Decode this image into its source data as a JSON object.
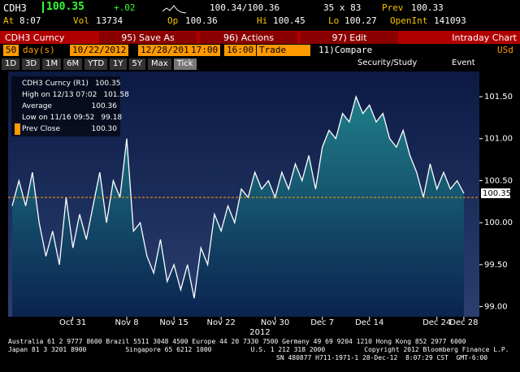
{
  "header": {
    "ticker": "CDH3",
    "last": "100.35",
    "change": "+.02",
    "bid_ask": "100.34/100.36",
    "size": "35 x 83",
    "prev_label": "Prev",
    "prev": "100.33",
    "at_label": "At",
    "time": "8:07",
    "vol_label": "Vol",
    "vol": "13734",
    "op_label": "Op",
    "open": "100.36",
    "hi_label": "Hi",
    "high": "100.45",
    "lo_label": "Lo",
    "low": "100.27",
    "oi_label": "OpenInt",
    "oi": "141093"
  },
  "toolbar": {
    "security": "CDH3 Curncy",
    "buttons": [
      "95) Save As",
      "96) Actions",
      "97) Edit"
    ],
    "view": "Intraday Chart"
  },
  "controls": {
    "period": "50",
    "unit": "day(s)",
    "start": "10/22/2012",
    "end": "12/28/2012",
    "t1": "17:00",
    "t2": "16:00",
    "field": "Trade",
    "compare": "11)Compare",
    "currency": "USd",
    "ranges": [
      "1D",
      "3D",
      "1M",
      "6M",
      "YTD",
      "1Y",
      "5Y",
      "Max",
      "Tick"
    ],
    "security_study": "Security/Study",
    "event": "Event"
  },
  "legend": [
    {
      "label": "CDH3 Curncy (R1)",
      "value": "100.35"
    },
    {
      "label": "High on 12/13 07:02",
      "value": "101.58"
    },
    {
      "label": "Average",
      "value": "100.36"
    },
    {
      "label": "Low on 11/16 09:52",
      "value": "99.18"
    },
    {
      "label": "Prev Close",
      "value": "100.30"
    }
  ],
  "chart_data": {
    "type": "line",
    "year_label": "2012",
    "x": [
      0,
      1,
      2,
      3,
      4,
      5,
      6,
      7,
      8,
      9,
      10,
      11,
      12,
      13,
      14,
      15,
      16,
      17,
      18,
      19,
      20,
      21,
      22,
      23,
      24,
      25,
      26,
      27,
      28,
      29,
      30,
      31,
      32,
      33,
      34,
      35,
      36,
      37,
      38,
      39,
      40,
      41,
      42,
      43,
      44,
      45,
      46,
      47,
      48,
      49,
      50,
      51,
      52,
      53,
      54,
      55,
      56,
      57,
      58,
      59,
      60,
      61,
      62,
      63,
      64,
      65,
      66,
      67
    ],
    "series": [
      {
        "name": "CDH3 Curncy",
        "color": "#ffffff",
        "values": [
          100.2,
          100.5,
          100.2,
          100.6,
          100.0,
          99.6,
          99.9,
          99.5,
          100.3,
          99.7,
          100.1,
          99.8,
          100.2,
          100.6,
          100.0,
          100.5,
          100.3,
          101.0,
          99.9,
          100.0,
          99.6,
          99.4,
          99.8,
          99.3,
          99.5,
          99.2,
          99.5,
          99.1,
          99.7,
          99.5,
          100.1,
          99.9,
          100.2,
          100.0,
          100.4,
          100.3,
          100.6,
          100.4,
          100.5,
          100.3,
          100.6,
          100.4,
          100.7,
          100.5,
          100.8,
          100.4,
          100.9,
          101.1,
          101.0,
          101.3,
          101.2,
          101.5,
          101.3,
          101.4,
          101.2,
          101.3,
          101.0,
          100.9,
          101.1,
          100.8,
          100.6,
          100.3,
          100.7,
          100.4,
          100.6,
          100.4,
          100.5,
          100.35
        ]
      }
    ],
    "prev_close": 100.3,
    "last_tag": {
      "value": 100.35,
      "label": "100.35"
    },
    "xlim": [
      -0.6,
      69.3
    ],
    "xticks": [
      {
        "value": 9,
        "label": "Oct 31"
      },
      {
        "value": 17,
        "label": "Nov 8"
      },
      {
        "value": 24,
        "label": "Nov 15"
      },
      {
        "value": 31,
        "label": "Nov 22"
      },
      {
        "value": 39,
        "label": "Nov 30"
      },
      {
        "value": 46,
        "label": "Dec 7"
      },
      {
        "value": 53,
        "label": "Dec 14"
      },
      {
        "value": 63,
        "label": "Dec 24"
      },
      {
        "value": 67,
        "label": "Dec 28"
      }
    ],
    "ylim": [
      98.88,
      101.8
    ],
    "yticks": [
      {
        "value": 99,
        "label": "99.00"
      },
      {
        "value": 99.5,
        "label": "99.50"
      },
      {
        "value": 100,
        "label": "100.00"
      },
      {
        "value": 100.5,
        "label": "100.50"
      },
      {
        "value": 101,
        "label": "101.00"
      },
      {
        "value": 101.5,
        "label": "101.50"
      }
    ]
  },
  "footer": [
    "Australia 61 2 9777 8600 Brazil 5511 3048 4500 Europe 44 20 7330 7500 Germany 49 69 9204 1210 Hong Kong 852 2977 6000",
    "Japan 81 3 3201 8900          Singapore 65 6212 1000          U.S. 1 212 318 2000          Copyright 2012 Bloomberg Finance L.P.",
    "SN 480877 H711-1971-1 28-Dec-12  8:07:29 CST  GMT-6:00"
  ]
}
